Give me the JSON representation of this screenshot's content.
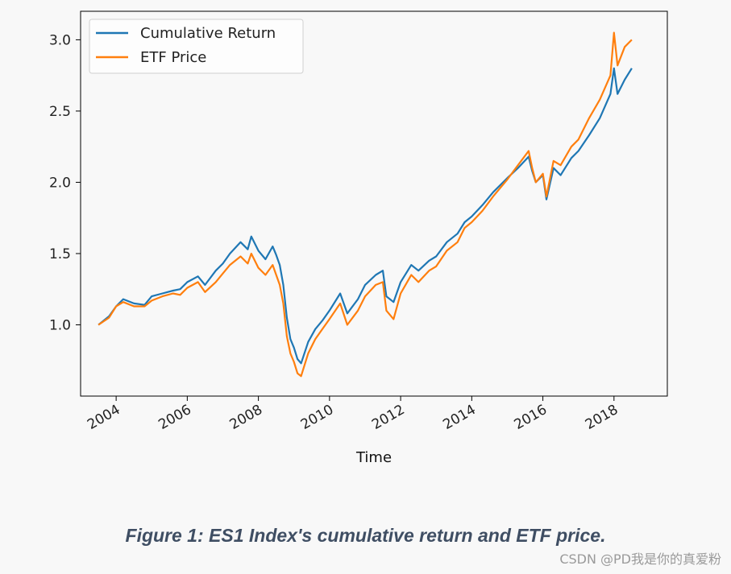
{
  "chart_data": {
    "type": "line",
    "title": "",
    "xlabel": "Time",
    "ylabel": "",
    "xlim": [
      2003.0,
      2019.5
    ],
    "ylim": [
      0.5,
      3.2
    ],
    "x_ticks": [
      2004,
      2006,
      2008,
      2010,
      2012,
      2014,
      2016,
      2018
    ],
    "x_tick_labels": [
      "2004",
      "2006",
      "2008",
      "2010",
      "2012",
      "2014",
      "2016",
      "2018"
    ],
    "y_ticks": [
      1.0,
      1.5,
      2.0,
      2.5,
      3.0
    ],
    "y_tick_labels": [
      "1.0",
      "1.5",
      "2.0",
      "2.5",
      "3.0"
    ],
    "grid": false,
    "legend_position": "top-left",
    "series": [
      {
        "name": "Cumulative Return",
        "color": "#1f77b4",
        "points": [
          [
            2003.5,
            1.0
          ],
          [
            2003.8,
            1.06
          ],
          [
            2004.0,
            1.13
          ],
          [
            2004.2,
            1.18
          ],
          [
            2004.5,
            1.15
          ],
          [
            2004.8,
            1.14
          ],
          [
            2005.0,
            1.2
          ],
          [
            2005.3,
            1.22
          ],
          [
            2005.6,
            1.24
          ],
          [
            2005.8,
            1.25
          ],
          [
            2006.0,
            1.3
          ],
          [
            2006.3,
            1.34
          ],
          [
            2006.5,
            1.28
          ],
          [
            2006.8,
            1.38
          ],
          [
            2007.0,
            1.43
          ],
          [
            2007.2,
            1.5
          ],
          [
            2007.5,
            1.58
          ],
          [
            2007.7,
            1.53
          ],
          [
            2007.8,
            1.62
          ],
          [
            2008.0,
            1.52
          ],
          [
            2008.2,
            1.46
          ],
          [
            2008.4,
            1.55
          ],
          [
            2008.5,
            1.49
          ],
          [
            2008.6,
            1.42
          ],
          [
            2008.7,
            1.28
          ],
          [
            2008.8,
            1.05
          ],
          [
            2008.9,
            0.9
          ],
          [
            2009.0,
            0.84
          ],
          [
            2009.1,
            0.76
          ],
          [
            2009.2,
            0.73
          ],
          [
            2009.4,
            0.88
          ],
          [
            2009.6,
            0.97
          ],
          [
            2009.8,
            1.03
          ],
          [
            2010.0,
            1.1
          ],
          [
            2010.3,
            1.22
          ],
          [
            2010.5,
            1.08
          ],
          [
            2010.8,
            1.18
          ],
          [
            2011.0,
            1.28
          ],
          [
            2011.3,
            1.35
          ],
          [
            2011.5,
            1.38
          ],
          [
            2011.6,
            1.2
          ],
          [
            2011.8,
            1.16
          ],
          [
            2012.0,
            1.3
          ],
          [
            2012.3,
            1.42
          ],
          [
            2012.5,
            1.38
          ],
          [
            2012.8,
            1.45
          ],
          [
            2013.0,
            1.48
          ],
          [
            2013.3,
            1.58
          ],
          [
            2013.6,
            1.64
          ],
          [
            2013.8,
            1.72
          ],
          [
            2014.0,
            1.76
          ],
          [
            2014.3,
            1.84
          ],
          [
            2014.6,
            1.93
          ],
          [
            2014.8,
            1.98
          ],
          [
            2015.0,
            2.03
          ],
          [
            2015.3,
            2.1
          ],
          [
            2015.6,
            2.18
          ],
          [
            2015.7,
            2.08
          ],
          [
            2015.8,
            2.0
          ],
          [
            2016.0,
            2.05
          ],
          [
            2016.1,
            1.88
          ],
          [
            2016.3,
            2.1
          ],
          [
            2016.5,
            2.05
          ],
          [
            2016.8,
            2.17
          ],
          [
            2017.0,
            2.22
          ],
          [
            2017.3,
            2.33
          ],
          [
            2017.6,
            2.45
          ],
          [
            2017.9,
            2.62
          ],
          [
            2018.0,
            2.8
          ],
          [
            2018.1,
            2.62
          ],
          [
            2018.3,
            2.72
          ],
          [
            2018.5,
            2.8
          ]
        ]
      },
      {
        "name": "ETF Price",
        "color": "#ff7f0e",
        "points": [
          [
            2003.5,
            1.0
          ],
          [
            2003.8,
            1.05
          ],
          [
            2004.0,
            1.13
          ],
          [
            2004.2,
            1.16
          ],
          [
            2004.5,
            1.13
          ],
          [
            2004.8,
            1.13
          ],
          [
            2005.0,
            1.17
          ],
          [
            2005.3,
            1.2
          ],
          [
            2005.6,
            1.22
          ],
          [
            2005.8,
            1.21
          ],
          [
            2006.0,
            1.26
          ],
          [
            2006.3,
            1.3
          ],
          [
            2006.5,
            1.23
          ],
          [
            2006.8,
            1.3
          ],
          [
            2007.0,
            1.36
          ],
          [
            2007.2,
            1.42
          ],
          [
            2007.5,
            1.48
          ],
          [
            2007.7,
            1.43
          ],
          [
            2007.8,
            1.5
          ],
          [
            2008.0,
            1.4
          ],
          [
            2008.2,
            1.35
          ],
          [
            2008.4,
            1.42
          ],
          [
            2008.5,
            1.35
          ],
          [
            2008.6,
            1.28
          ],
          [
            2008.7,
            1.15
          ],
          [
            2008.8,
            0.92
          ],
          [
            2008.9,
            0.8
          ],
          [
            2009.0,
            0.74
          ],
          [
            2009.1,
            0.66
          ],
          [
            2009.2,
            0.64
          ],
          [
            2009.4,
            0.8
          ],
          [
            2009.6,
            0.9
          ],
          [
            2009.8,
            0.97
          ],
          [
            2010.0,
            1.04
          ],
          [
            2010.3,
            1.15
          ],
          [
            2010.5,
            1.0
          ],
          [
            2010.8,
            1.1
          ],
          [
            2011.0,
            1.2
          ],
          [
            2011.3,
            1.28
          ],
          [
            2011.5,
            1.3
          ],
          [
            2011.6,
            1.1
          ],
          [
            2011.8,
            1.04
          ],
          [
            2012.0,
            1.22
          ],
          [
            2012.3,
            1.35
          ],
          [
            2012.5,
            1.3
          ],
          [
            2012.8,
            1.38
          ],
          [
            2013.0,
            1.41
          ],
          [
            2013.3,
            1.52
          ],
          [
            2013.6,
            1.58
          ],
          [
            2013.8,
            1.68
          ],
          [
            2014.0,
            1.72
          ],
          [
            2014.3,
            1.8
          ],
          [
            2014.6,
            1.9
          ],
          [
            2014.8,
            1.96
          ],
          [
            2015.0,
            2.02
          ],
          [
            2015.3,
            2.12
          ],
          [
            2015.6,
            2.22
          ],
          [
            2015.7,
            2.1
          ],
          [
            2015.8,
            2.0
          ],
          [
            2016.0,
            2.06
          ],
          [
            2016.1,
            1.9
          ],
          [
            2016.3,
            2.15
          ],
          [
            2016.5,
            2.12
          ],
          [
            2016.8,
            2.25
          ],
          [
            2017.0,
            2.3
          ],
          [
            2017.3,
            2.45
          ],
          [
            2017.6,
            2.58
          ],
          [
            2017.9,
            2.75
          ],
          [
            2018.0,
            3.05
          ],
          [
            2018.1,
            2.82
          ],
          [
            2018.3,
            2.95
          ],
          [
            2018.5,
            3.0
          ]
        ]
      }
    ]
  },
  "caption": "Figure 1: ES1 Index's cumulative return and ETF price.",
  "watermark": "CSDN @PD我是你的真爱粉"
}
